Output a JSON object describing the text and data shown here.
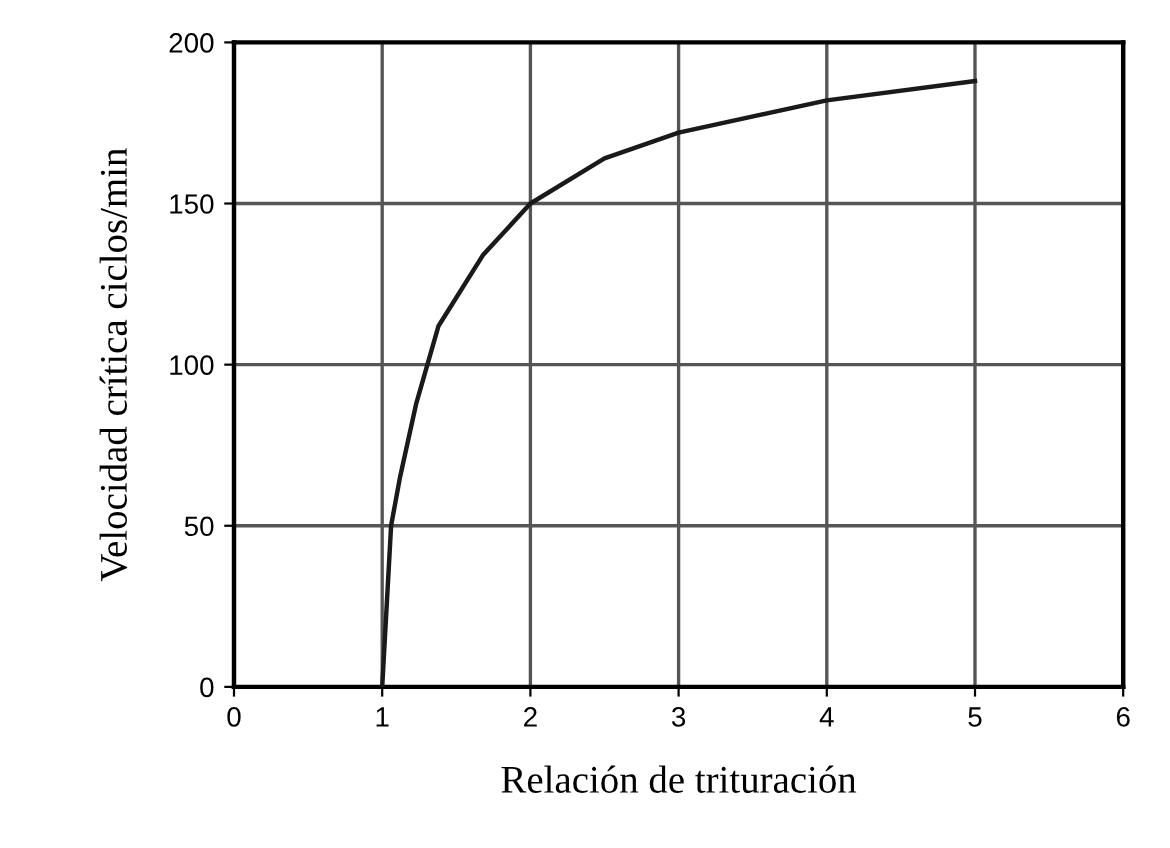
{
  "chart_data": {
    "type": "line",
    "xlabel": "Relación de trituración",
    "ylabel": "Velocidad crítica ciclos/min",
    "x": [
      1,
      1.06,
      1.12,
      1.23,
      1.38,
      1.68,
      2,
      2.5,
      3,
      4,
      5
    ],
    "series": [
      {
        "color": "#1a1a1a",
        "values": [
          0,
          50,
          65,
          88,
          112,
          134,
          150,
          164,
          172,
          182,
          188
        ]
      }
    ],
    "xlim": [
      0,
      6
    ],
    "xticks": [
      0,
      1,
      2,
      3,
      4,
      5,
      6
    ],
    "ylim": [
      0,
      200
    ],
    "yticks": [
      0,
      50,
      100,
      150,
      200
    ],
    "grid": true,
    "marker": "none",
    "line_style": "solid"
  }
}
